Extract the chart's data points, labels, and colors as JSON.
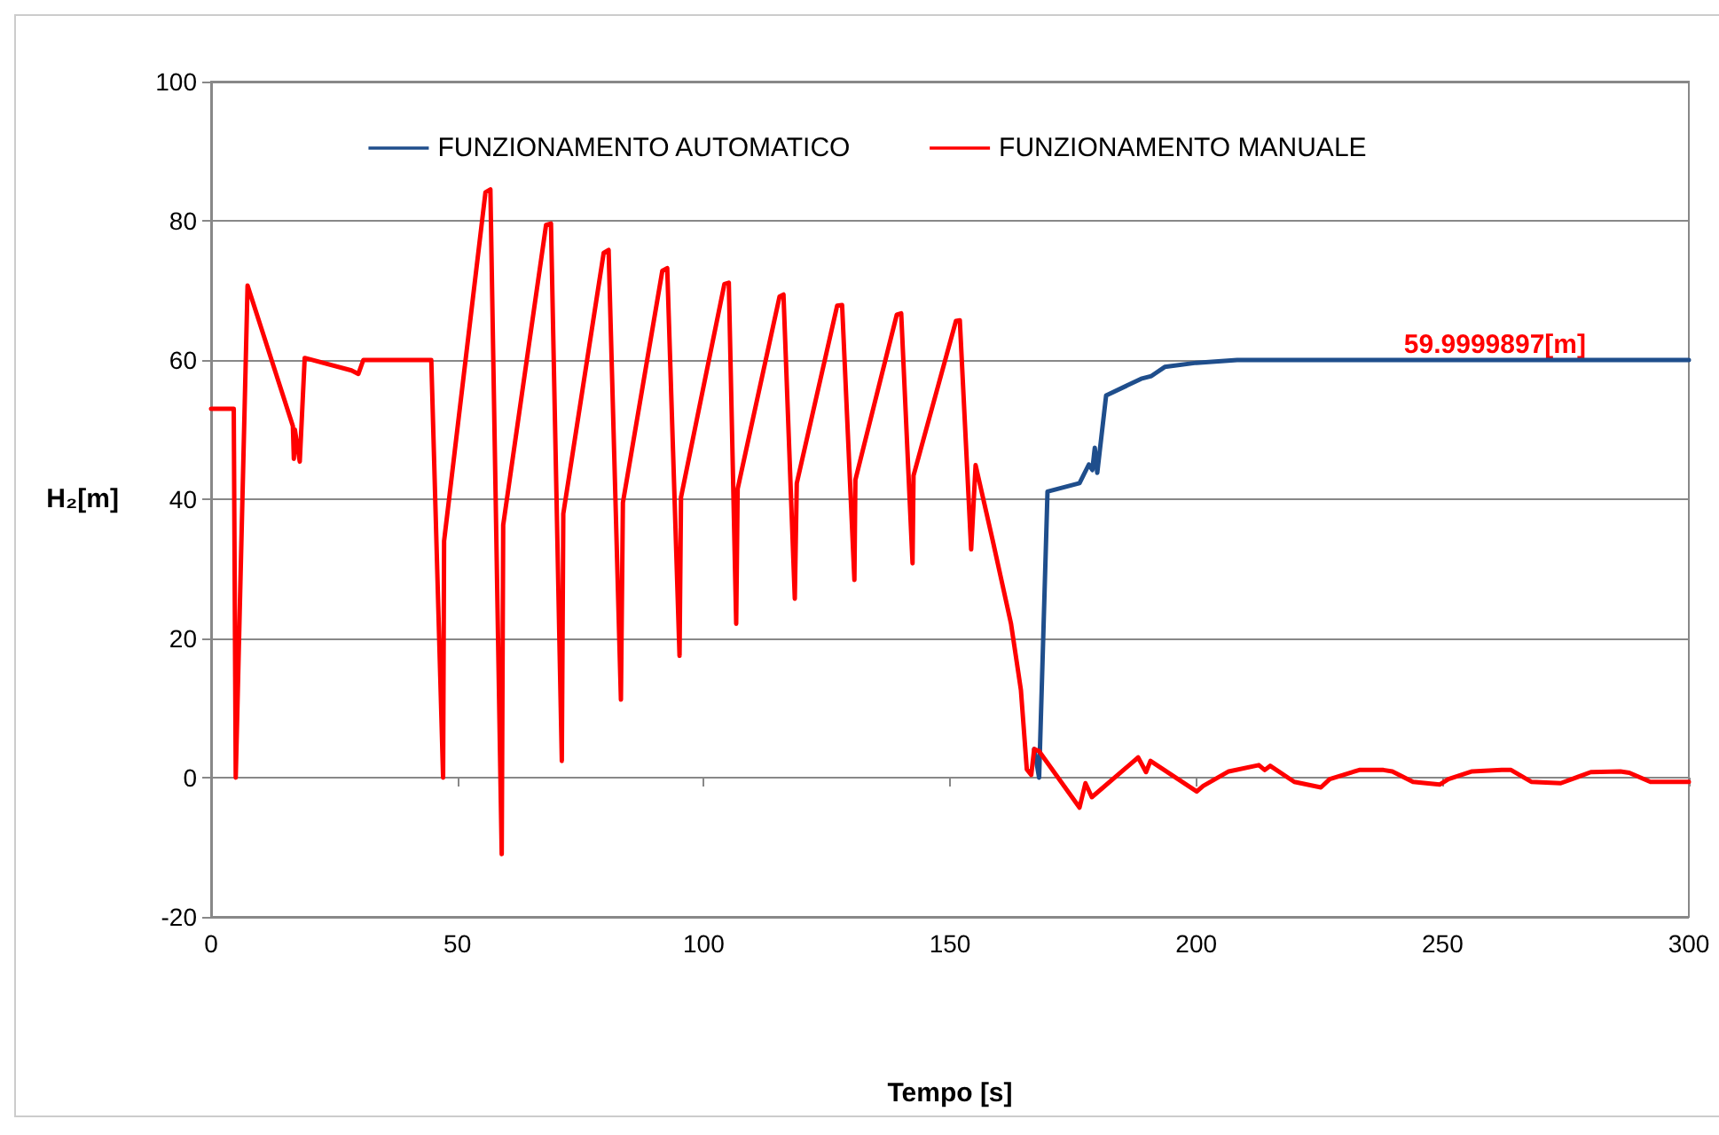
{
  "chart_data": {
    "type": "line",
    "xlabel": "Tempo [s]",
    "ylabel": "H₂[m]",
    "xlim": [
      0,
      300
    ],
    "xticks": [
      0,
      50,
      100,
      150,
      200,
      250,
      300
    ],
    "ylim": [
      -20,
      100
    ],
    "yticks": [
      -20,
      0,
      20,
      40,
      60,
      80,
      100
    ],
    "grid": "y",
    "legend": "top",
    "marker": "none",
    "line_style": "solid",
    "annotations": [
      "59.9999897[m]"
    ],
    "series": [
      {
        "name": "FUNZIONAMENTO AUTOMATICO",
        "color": "#1f4e8c",
        "x": [
          167.1,
          168.1,
          169.8,
          176.3,
          178.2,
          178.9,
          179.4,
          179.9,
          181.7,
          188.8,
          190.9,
          191.5,
          193.6,
          200,
          208.3,
          220,
          250,
          300
        ],
        "values": [
          4.1,
          0,
          41.1,
          42.3,
          45,
          44.2,
          47.4,
          43.8,
          54.9,
          57.3,
          57.7,
          58,
          59,
          59.6,
          60,
          60,
          60,
          60
        ]
      },
      {
        "name": "FUNZIONAMENTO MANUALE",
        "color": "#ff0000",
        "x": [
          0,
          4.6,
          5.0,
          7.4,
          16.6,
          16.8,
          17.0,
          18.0,
          19.0,
          28.5,
          29.9,
          30.9,
          44.1,
          44.7,
          47.1,
          47.3,
          55.7,
          56.7,
          59.0,
          59.3,
          68.0,
          69.0,
          71.2,
          71.5,
          79.7,
          80.7,
          83.2,
          83.6,
          91.6,
          92.6,
          95.1,
          95.4,
          104.2,
          105.1,
          106.6,
          106.9,
          115.4,
          116.2,
          118.5,
          118.9,
          127.1,
          128.1,
          130.6,
          130.8,
          139.2,
          140.1,
          142.4,
          142.6,
          151.2,
          152.0,
          154.3,
          155.2,
          158.7,
          162.4,
          164.4,
          165.6,
          166.5,
          167.1,
          168.1,
          176.3,
          177.5,
          178.8,
          188.2,
          189.8,
          190.7,
          200.1,
          201.4,
          206.6,
          212.7,
          213.9,
          215,
          219.9,
          225.3,
          227.1,
          233.1,
          238,
          239.8,
          244,
          249.4,
          251.2,
          256,
          262,
          263.9,
          268,
          274,
          280.1,
          286.1,
          287.9,
          292.2,
          300
        ],
        "values": [
          53,
          53,
          0,
          70.7,
          50.5,
          45.8,
          50,
          45.4,
          60.3,
          58.5,
          58,
          60,
          60,
          60,
          0,
          34,
          84.1,
          84.5,
          -11,
          36.3,
          79.4,
          79.6,
          2.4,
          37.9,
          75.4,
          75.8,
          11.2,
          39.5,
          72.8,
          73.2,
          17.5,
          40.3,
          70.9,
          71.1,
          22.1,
          41.5,
          69.1,
          69.4,
          25.7,
          42.3,
          67.8,
          67.9,
          28.4,
          42.8,
          66.5,
          66.7,
          30.8,
          43.4,
          65.6,
          65.7,
          32.8,
          44.9,
          34,
          22.1,
          12.6,
          1.2,
          0.4,
          4.1,
          3.8,
          -4.3,
          -0.8,
          -2.8,
          2.9,
          0.8,
          2.4,
          -2,
          -1.2,
          0.9,
          1.8,
          1.1,
          1.7,
          -0.6,
          -1.4,
          -0.2,
          1.1,
          1.1,
          0.9,
          -0.6,
          -1,
          -0.2,
          0.9,
          1.1,
          1.1,
          -0.6,
          -0.8,
          0.8,
          0.9,
          0.7,
          -0.6,
          -0.6
        ]
      }
    ]
  }
}
